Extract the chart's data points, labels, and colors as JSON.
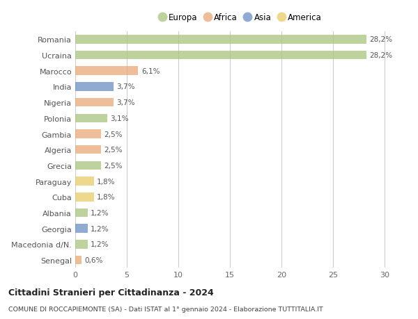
{
  "categories": [
    "Romania",
    "Ucraina",
    "Marocco",
    "India",
    "Nigeria",
    "Polonia",
    "Gambia",
    "Algeria",
    "Grecia",
    "Paraguay",
    "Cuba",
    "Albania",
    "Georgia",
    "Macedonia d/N.",
    "Senegal"
  ],
  "values": [
    28.2,
    28.2,
    6.1,
    3.7,
    3.7,
    3.1,
    2.5,
    2.5,
    2.5,
    1.8,
    1.8,
    1.2,
    1.2,
    1.2,
    0.6
  ],
  "labels": [
    "28,2%",
    "28,2%",
    "6,1%",
    "3,7%",
    "3,7%",
    "3,1%",
    "2,5%",
    "2,5%",
    "2,5%",
    "1,8%",
    "1,8%",
    "1,2%",
    "1,2%",
    "1,2%",
    "0,6%"
  ],
  "colors": [
    "#a8c47e",
    "#a8c47e",
    "#e9a87a",
    "#6b8fc4",
    "#e9a87a",
    "#a8c47e",
    "#e9a87a",
    "#e9a87a",
    "#a8c47e",
    "#e8cc68",
    "#e8cc68",
    "#a8c47e",
    "#6b8fc4",
    "#a8c47e",
    "#e9a87a"
  ],
  "continent_colors": {
    "Europa": "#a8c47e",
    "Africa": "#e9a87a",
    "Asia": "#6b8fc4",
    "America": "#e8cc68"
  },
  "xlim": [
    0,
    32
  ],
  "xticks": [
    0,
    5,
    10,
    15,
    20,
    25,
    30
  ],
  "title": "Cittadini Stranieri per Cittadinanza - 2024",
  "subtitle": "COMUNE DI ROCCAPIEMONTE (SA) - Dati ISTAT al 1° gennaio 2024 - Elaborazione TUTTITALIA.IT",
  "background_color": "#ffffff",
  "grid_color": "#cccccc",
  "bar_height": 0.55,
  "bar_alpha": 0.75
}
